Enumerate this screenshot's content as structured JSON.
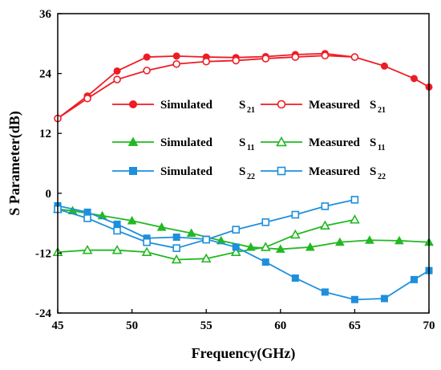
{
  "chart_data": {
    "type": "line",
    "xlabel": "Frequency(GHz)",
    "ylabel": "S Parameter(dB)",
    "xlim": [
      45,
      70
    ],
    "ylim": [
      -24,
      36
    ],
    "xticks": [
      45,
      50,
      55,
      60,
      65,
      70
    ],
    "yticks": [
      -24,
      -12,
      0,
      12,
      24,
      36
    ],
    "grid": false,
    "legend_position": "upper-center",
    "series": [
      {
        "name": "Simulated S21",
        "label_main": "Simulated",
        "label_param": "S",
        "label_sub": "21",
        "color": "#ee1c25",
        "marker": "circle-filled",
        "x": [
          45,
          47,
          49,
          51,
          53,
          55,
          57,
          59,
          61,
          63,
          65,
          67,
          69,
          70
        ],
        "y": [
          15,
          19.5,
          24.5,
          27.3,
          27.5,
          27.3,
          27.2,
          27.4,
          27.8,
          28.0,
          27.3,
          25.5,
          23,
          21.3
        ]
      },
      {
        "name": "Measured S21",
        "label_main": "Measured",
        "label_param": "S",
        "label_sub": "21",
        "color": "#ee1c25",
        "marker": "circle-open",
        "x": [
          45,
          47,
          49,
          51,
          53,
          55,
          57,
          59,
          61,
          63,
          65
        ],
        "y": [
          15,
          19,
          22.8,
          24.6,
          25.9,
          26.4,
          26.6,
          27.0,
          27.3,
          27.6,
          27.3
        ]
      },
      {
        "name": "Simulated S11",
        "label_main": "Simulated",
        "label_param": "S",
        "label_sub": "11",
        "color": "#22b822",
        "marker": "triangle-filled",
        "x": [
          45,
          46,
          48,
          50,
          52,
          54,
          56,
          58,
          60,
          62,
          64,
          66,
          68,
          70
        ],
        "y": [
          -3.2,
          -3.5,
          -4.5,
          -5.5,
          -6.8,
          -8,
          -9.5,
          -10.8,
          -11.2,
          -10.8,
          -9.8,
          -9.4,
          -9.5,
          -9.8
        ]
      },
      {
        "name": "Measured S11",
        "label_main": "Measured",
        "label_param": "S",
        "label_sub": "11",
        "color": "#22b822",
        "marker": "triangle-open",
        "x": [
          45,
          47,
          49,
          51,
          53,
          55,
          57,
          59,
          61,
          63,
          65
        ],
        "y": [
          -11.8,
          -11.4,
          -11.4,
          -11.8,
          -13.3,
          -13.1,
          -11.8,
          -10.8,
          -8.3,
          -6.5,
          -5.3
        ]
      },
      {
        "name": "Simulated S22",
        "label_main": "Simulated",
        "label_param": "S",
        "label_sub": "22",
        "color": "#1e8fdc",
        "marker": "square-filled",
        "x": [
          45,
          47,
          49,
          51,
          53,
          55,
          57,
          59,
          61,
          63,
          65,
          67,
          69,
          70
        ],
        "y": [
          -2.5,
          -3.8,
          -6.2,
          -9,
          -8.8,
          -9.2,
          -10.8,
          -13.8,
          -17,
          -19.8,
          -21.3,
          -21.1,
          -17.3,
          -15.5
        ]
      },
      {
        "name": "Measured S22",
        "label_main": "Measured",
        "label_param": "S",
        "label_sub": "22",
        "color": "#1e8fdc",
        "marker": "square-open",
        "x": [
          45,
          47,
          49,
          51,
          53,
          55,
          57,
          59,
          61,
          63,
          65
        ],
        "y": [
          -3.2,
          -5,
          -7.5,
          -9.8,
          -11,
          -9.3,
          -7.3,
          -5.8,
          -4.3,
          -2.6,
          -1.3
        ]
      }
    ]
  }
}
